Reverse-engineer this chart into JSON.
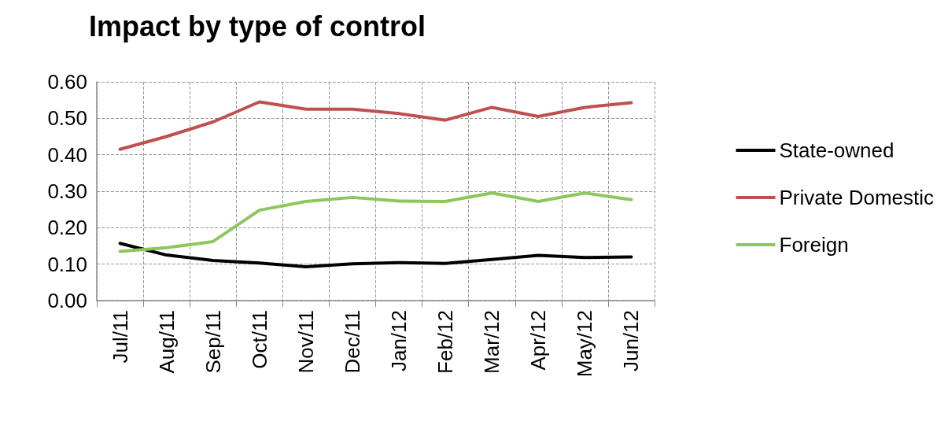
{
  "chart_data": {
    "type": "line",
    "title": "Impact by type of control",
    "categories": [
      "Jul/11",
      "Aug/11",
      "Sep/11",
      "Oct/11",
      "Nov/11",
      "Dec/11",
      "Jan/12",
      "Feb/12",
      "Mar/12",
      "Apr/12",
      "May/12",
      "Jun/12"
    ],
    "series": [
      {
        "name": "State-owned",
        "color": "#000000",
        "values": [
          0.157,
          0.125,
          0.11,
          0.103,
          0.093,
          0.101,
          0.104,
          0.102,
          0.113,
          0.124,
          0.118,
          0.12
        ]
      },
      {
        "name": "Private Domestic",
        "color": "#c0504d",
        "values": [
          0.415,
          0.45,
          0.49,
          0.545,
          0.525,
          0.525,
          0.513,
          0.495,
          0.53,
          0.505,
          0.53,
          0.543
        ]
      },
      {
        "name": "Foreign",
        "color": "#8dc65c",
        "values": [
          0.135,
          0.145,
          0.162,
          0.248,
          0.272,
          0.283,
          0.273,
          0.272,
          0.295,
          0.272,
          0.295,
          0.277
        ]
      }
    ],
    "ylim": [
      0,
      0.6
    ],
    "yticks": [
      {
        "value": 0,
        "label": "0.00"
      },
      {
        "value": 0.1,
        "label": "0.10"
      },
      {
        "value": 0.2,
        "label": "0.20"
      },
      {
        "value": 0.3,
        "label": "0.30"
      },
      {
        "value": 0.4,
        "label": "0.40"
      },
      {
        "value": 0.5,
        "label": "0.50"
      },
      {
        "value": 0.6,
        "label": "0.60"
      }
    ],
    "grid": true,
    "legend": "right",
    "marker": "none",
    "line_style": "solid"
  }
}
